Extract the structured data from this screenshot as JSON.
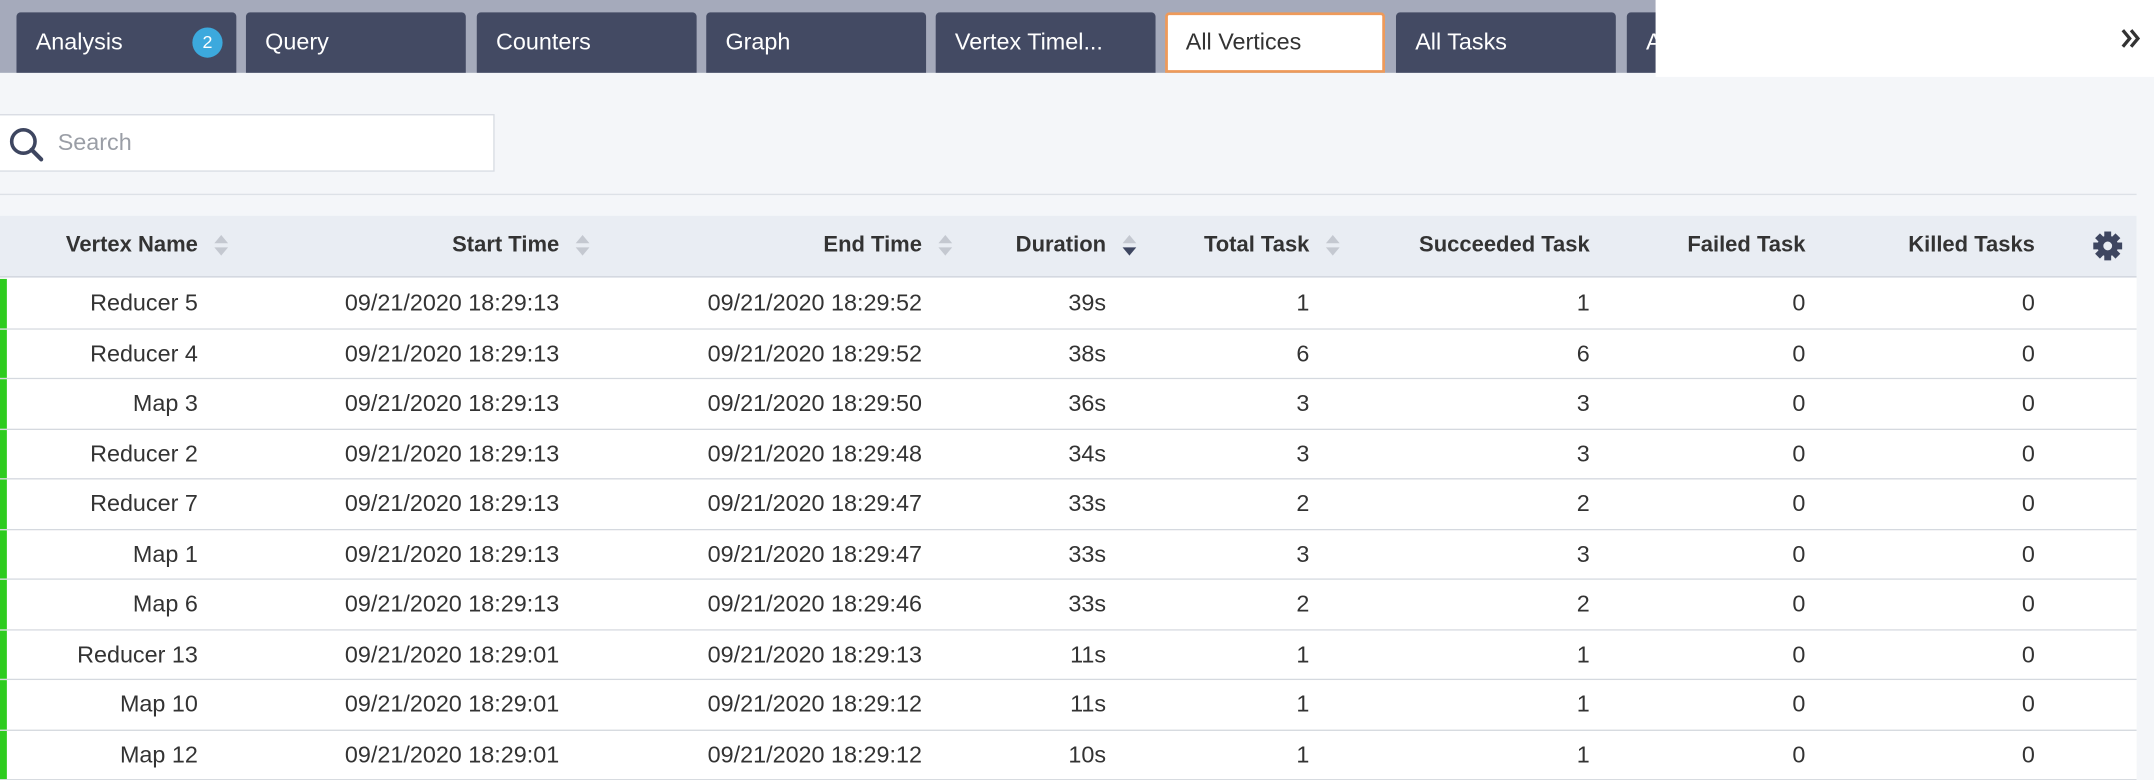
{
  "tabs": [
    {
      "label": "Analysis",
      "badge": "2"
    },
    {
      "label": "Query"
    },
    {
      "label": "Counters"
    },
    {
      "label": "Graph"
    },
    {
      "label": "Vertex Timel..."
    },
    {
      "label": "All Vertices",
      "active": true
    },
    {
      "label": "All Tasks"
    },
    {
      "label": "All"
    }
  ],
  "search": {
    "placeholder": "Search"
  },
  "table": {
    "headers": [
      "Vertex Name",
      "Start Time",
      "End Time",
      "Duration",
      "Total Task",
      "Succeeded Task",
      "Failed Task",
      "Killed Tasks"
    ],
    "rows": [
      [
        "Reducer 5",
        "09/21/2020 18:29:13",
        "09/21/2020 18:29:52",
        "39s",
        "1",
        "1",
        "0",
        "0"
      ],
      [
        "Reducer 4",
        "09/21/2020 18:29:13",
        "09/21/2020 18:29:52",
        "38s",
        "6",
        "6",
        "0",
        "0"
      ],
      [
        "Map 3",
        "09/21/2020 18:29:13",
        "09/21/2020 18:29:50",
        "36s",
        "3",
        "3",
        "0",
        "0"
      ],
      [
        "Reducer 2",
        "09/21/2020 18:29:13",
        "09/21/2020 18:29:48",
        "34s",
        "3",
        "3",
        "0",
        "0"
      ],
      [
        "Reducer 7",
        "09/21/2020 18:29:13",
        "09/21/2020 18:29:47",
        "33s",
        "2",
        "2",
        "0",
        "0"
      ],
      [
        "Map 1",
        "09/21/2020 18:29:13",
        "09/21/2020 18:29:47",
        "33s",
        "3",
        "3",
        "0",
        "0"
      ],
      [
        "Map 6",
        "09/21/2020 18:29:13",
        "09/21/2020 18:29:46",
        "33s",
        "2",
        "2",
        "0",
        "0"
      ],
      [
        "Reducer 13",
        "09/21/2020 18:29:01",
        "09/21/2020 18:29:13",
        "11s",
        "1",
        "1",
        "0",
        "0"
      ],
      [
        "Map 10",
        "09/21/2020 18:29:01",
        "09/21/2020 18:29:12",
        "11s",
        "1",
        "1",
        "0",
        "0"
      ],
      [
        "Map 12",
        "09/21/2020 18:29:01",
        "09/21/2020 18:29:12",
        "10s",
        "1",
        "1",
        "0",
        "0"
      ]
    ]
  }
}
